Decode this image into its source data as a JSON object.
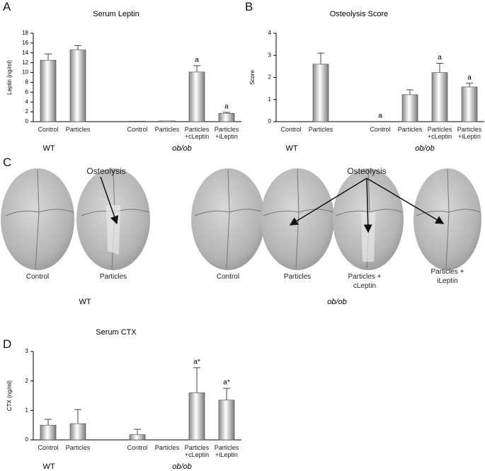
{
  "panels": [
    "A",
    "B",
    "C",
    "D"
  ],
  "chart_data": [
    {
      "type": "bar",
      "title": "Serum Leptin",
      "y_label": "Leptin (ng/ml)",
      "categories": [
        "Control",
        "Particles",
        null,
        "Control",
        "Particles",
        "Particles +cLeptin",
        "Particles +iLeptin"
      ],
      "values": [
        12.5,
        14.6,
        null,
        0.1,
        0.15,
        10.1,
        1.7
      ],
      "errors": [
        1.3,
        0.9,
        null,
        null,
        null,
        1.3,
        0.2
      ],
      "annotations": [
        null,
        null,
        null,
        null,
        null,
        "a",
        "a"
      ],
      "groups": [
        "WT",
        "ob/ob"
      ],
      "color": "#c8c8c8",
      "ylim": [
        0,
        18
      ],
      "yticks": [
        0,
        2,
        4,
        6,
        8,
        10,
        12,
        14,
        16,
        18
      ]
    },
    {
      "type": "bar",
      "title": "Osteolysis Score",
      "y_label": "Score",
      "categories": [
        "Control",
        "Particles",
        null,
        "Control",
        "Particles",
        "Particles +cLeptin",
        "Particles +iLeptin"
      ],
      "values": [
        0,
        2.6,
        null,
        0,
        1.22,
        2.22,
        1.57
      ],
      "errors": [
        null,
        0.5,
        null,
        null,
        0.22,
        0.42,
        0.17
      ],
      "annotations": [
        null,
        null,
        null,
        "a",
        null,
        "a",
        "a"
      ],
      "groups": [
        "WT",
        "ob/ob"
      ],
      "color": "#c8c8c8",
      "ylim": [
        0,
        4
      ],
      "yticks": [
        0,
        1,
        2,
        3,
        4
      ]
    },
    {
      "type": "bar",
      "title": "Serum CTX",
      "y_label": "CTX (ng/ml)",
      "categories": [
        "Control",
        "Particles",
        null,
        "Control",
        "Particles",
        "Particles +cLeptin",
        "Particles +iLeptin"
      ],
      "values": [
        0.5,
        0.55,
        null,
        0.18,
        0,
        1.6,
        1.35
      ],
      "errors": [
        0.2,
        0.48,
        null,
        0.18,
        null,
        0.85,
        0.4
      ],
      "annotations": [
        null,
        null,
        null,
        null,
        null,
        "a*",
        "a*"
      ],
      "groups": [
        "WT",
        "ob/ob"
      ],
      "color": "#c8c8c8",
      "ylim": [
        0,
        3
      ],
      "yticks": [
        0,
        1,
        2,
        3
      ]
    }
  ],
  "panel_c": {
    "annotations": [
      "Osteolysis",
      "Osteolysis"
    ],
    "labels": [
      "Control",
      "Particles",
      "Control",
      "Particles",
      "Particles + cLeptin",
      "Particles + iLeptin"
    ],
    "groups": [
      "WT",
      "ob/ob"
    ]
  }
}
